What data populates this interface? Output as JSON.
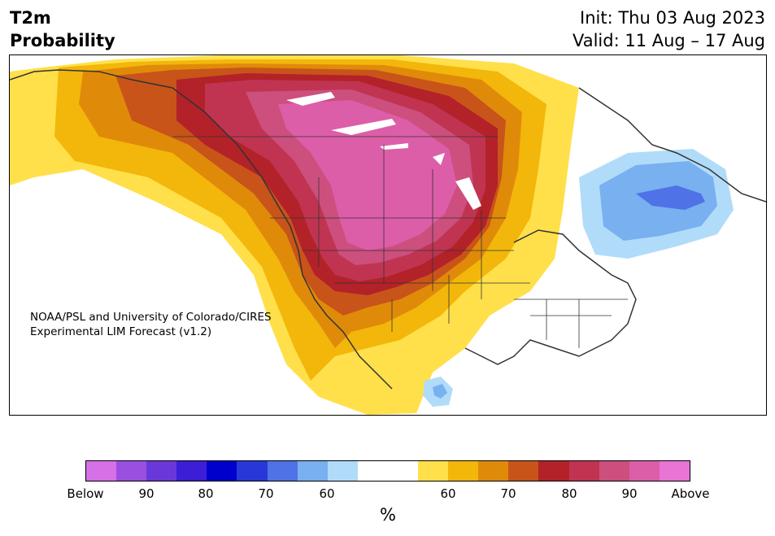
{
  "header": {
    "title_line1": "T2m",
    "title_line2": "Probability",
    "init": "Init: Thu 03 Aug 2023",
    "valid": "Valid: 11 Aug – 17 Aug"
  },
  "map": {
    "credit_line1": "NOAA/PSL and University of Colorado/CIRES",
    "credit_line2": "Experimental LIM Forecast (v1.2)"
  },
  "colorbar": {
    "unit": "%",
    "colors": [
      "#d670e6",
      "#9a4fe0",
      "#6a38da",
      "#3b1ed6",
      "#0000cd",
      "#2838d8",
      "#4f72e6",
      "#78b0f0",
      "#b0dcfa",
      "#ffffff",
      "#ffffff",
      "#ffe04a",
      "#f2b70a",
      "#e08a0a",
      "#c8541a",
      "#b22228",
      "#c03452",
      "#cc4f7e",
      "#dc5ea8",
      "#e874d6"
    ],
    "tick_labels": [
      "Below",
      "90",
      "80",
      "70",
      "60",
      "60",
      "70",
      "80",
      "90",
      "Above"
    ]
  }
}
